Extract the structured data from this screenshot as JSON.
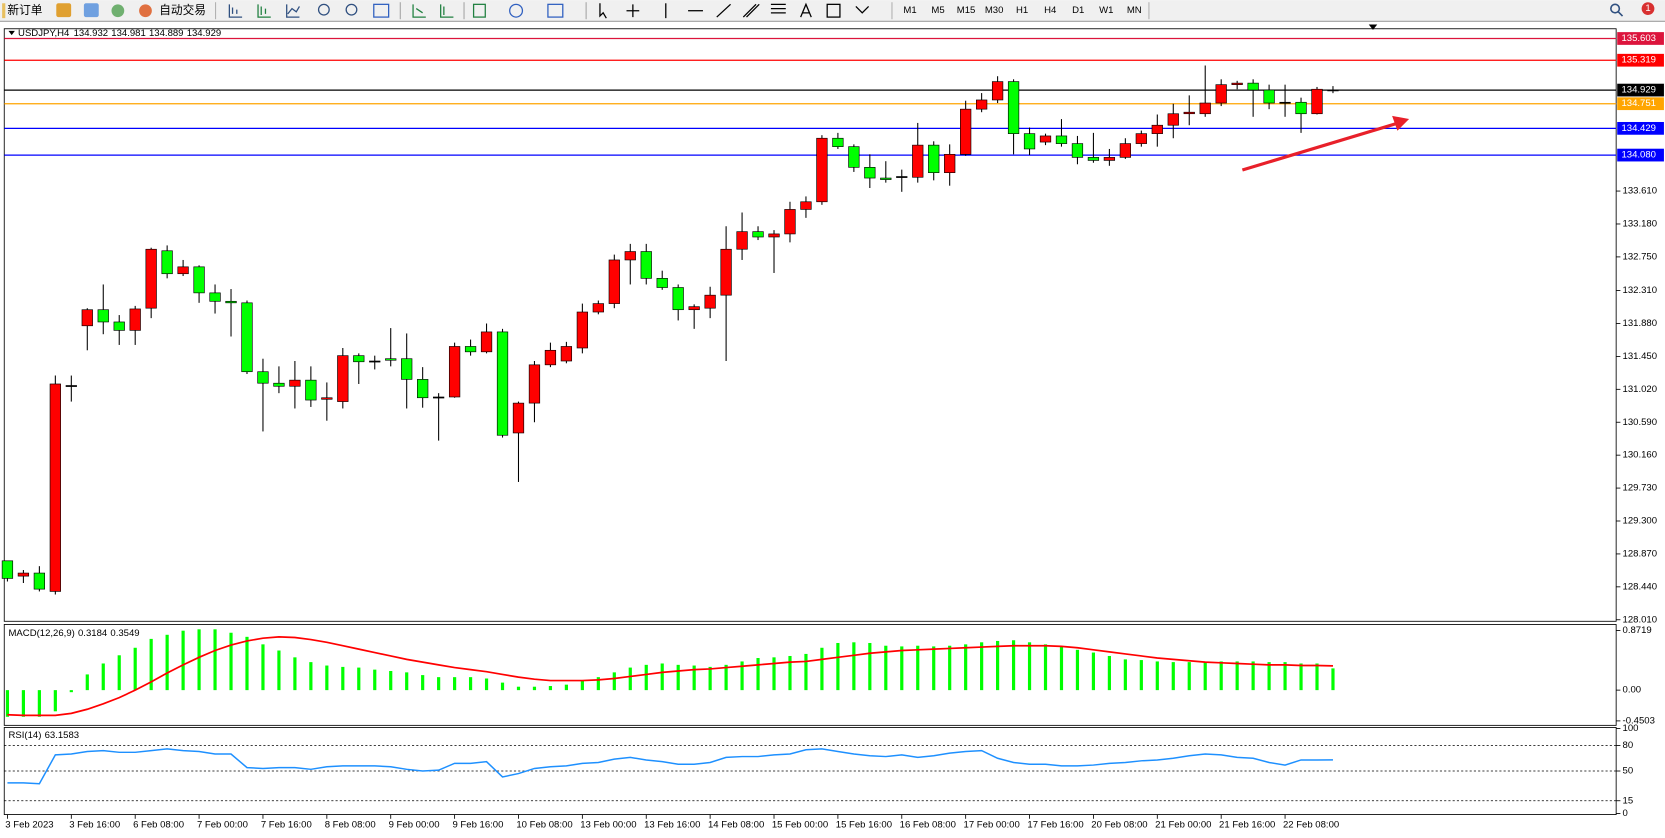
{
  "toolbar": {
    "new_order": "新订单",
    "auto_trading": "自动交易",
    "timeframes": [
      "M1",
      "M5",
      "M15",
      "M30",
      "H1",
      "H4",
      "D1",
      "W1",
      "MN"
    ],
    "alerts": 1
  },
  "chart_data": [
    {
      "type": "candlestick",
      "title": "USDJPY,H4",
      "categories": [
        "3 Feb 2023",
        null,
        null,
        null,
        "3 Feb 16:00",
        null,
        null,
        null,
        "6 Feb 08:00",
        null,
        null,
        null,
        "7 Feb 00:00",
        null,
        null,
        null,
        "7 Feb 16:00",
        null,
        null,
        null,
        "8 Feb 08:00",
        null,
        null,
        null,
        "9 Feb 00:00",
        null,
        null,
        null,
        "9 Feb 16:00",
        null,
        null,
        null,
        "10 Feb 08:00",
        null,
        null,
        null,
        "13 Feb 00:00",
        null,
        null,
        null,
        "13 Feb 16:00",
        null,
        null,
        null,
        "14 Feb 08:00",
        null,
        null,
        null,
        "15 Feb 00:00",
        null,
        null,
        null,
        "15 Feb 16:00",
        null,
        null,
        null,
        "16 Feb 08:00",
        null,
        null,
        null,
        "17 Feb 00:00",
        null,
        null,
        null,
        "17 Feb 16:00",
        null,
        null,
        null,
        "20 Feb 08:00",
        null,
        null,
        null,
        "21 Feb 00:00",
        null,
        null,
        null,
        "21 Feb 16:00",
        null,
        null,
        null,
        "22 Feb 08:00",
        null,
        null,
        null
      ],
      "open": [
        128.78,
        128.58,
        128.62,
        128.38,
        131.07,
        131.85,
        132.06,
        131.9,
        131.79,
        132.08,
        132.83,
        132.53,
        132.62,
        132.28,
        132.17,
        132.15,
        131.25,
        131.1,
        131.06,
        131.14,
        130.89,
        130.86,
        131.46,
        131.39,
        131.42,
        131.42,
        131.15,
        130.91,
        130.92,
        131.58,
        131.51,
        131.77,
        130.45,
        130.84,
        131.34,
        131.39,
        131.56,
        132.03,
        132.14,
        132.71,
        132.82,
        132.47,
        132.35,
        132.06,
        132.08,
        132.25,
        132.85,
        133.08,
        133.01,
        133.05,
        133.37,
        133.47,
        134.3,
        134.19,
        133.92,
        133.78,
        133.79,
        133.79,
        134.21,
        133.85,
        134.09,
        134.68,
        134.8,
        135.04,
        134.36,
        134.25,
        134.33,
        134.23,
        134.05,
        134.01,
        134.05,
        134.23,
        134.36,
        134.47,
        134.62,
        134.62,
        134.76,
        135.0,
        135.02,
        134.93,
        134.77,
        134.77,
        134.62,
        134.932
      ],
      "high": [
        128.78,
        128.66,
        128.71,
        131.2,
        131.2,
        132.08,
        132.39,
        131.99,
        132.11,
        132.87,
        132.9,
        132.71,
        132.64,
        132.39,
        132.33,
        132.18,
        131.42,
        131.32,
        131.39,
        131.32,
        131.11,
        131.56,
        131.49,
        131.46,
        131.82,
        131.75,
        131.31,
        130.97,
        131.63,
        131.67,
        131.88,
        131.81,
        130.86,
        131.39,
        131.63,
        131.64,
        132.14,
        132.18,
        132.78,
        132.92,
        132.92,
        132.57,
        132.39,
        132.13,
        132.36,
        133.15,
        133.33,
        133.15,
        133.1,
        133.47,
        133.54,
        134.34,
        134.37,
        134.22,
        134.09,
        134.0,
        133.89,
        134.5,
        134.26,
        134.22,
        134.79,
        134.89,
        135.11,
        135.07,
        134.44,
        134.36,
        134.55,
        134.33,
        134.37,
        134.16,
        134.3,
        134.4,
        134.61,
        134.75,
        134.86,
        135.25,
        135.07,
        135.05,
        135.07,
        135.0,
        135.0,
        134.83,
        134.97,
        134.981
      ],
      "low": [
        128.51,
        128.49,
        128.38,
        128.34,
        130.86,
        131.53,
        131.74,
        131.6,
        131.6,
        131.95,
        132.47,
        132.5,
        132.15,
        132.01,
        131.71,
        131.22,
        130.47,
        130.97,
        130.77,
        130.79,
        130.61,
        130.77,
        131.09,
        131.28,
        131.32,
        130.77,
        130.78,
        130.35,
        130.91,
        131.46,
        131.49,
        130.39,
        129.81,
        130.59,
        131.31,
        131.36,
        131.49,
        132.0,
        132.08,
        132.39,
        132.39,
        132.32,
        131.92,
        131.81,
        131.95,
        131.39,
        132.71,
        132.97,
        132.54,
        132.94,
        133.26,
        133.43,
        134.16,
        133.86,
        133.65,
        133.72,
        133.6,
        133.72,
        133.75,
        133.68,
        134.07,
        134.64,
        134.76,
        134.09,
        134.08,
        134.21,
        134.19,
        133.96,
        133.98,
        133.94,
        134.03,
        134.19,
        134.19,
        134.3,
        134.47,
        134.58,
        134.72,
        134.94,
        134.58,
        134.68,
        134.58,
        134.37,
        134.61,
        134.889
      ],
      "close": [
        128.55,
        128.62,
        128.41,
        131.09,
        131.06,
        132.06,
        131.9,
        131.79,
        132.07,
        132.85,
        132.53,
        132.62,
        132.28,
        132.17,
        132.15,
        131.25,
        131.1,
        131.06,
        131.14,
        130.88,
        130.91,
        131.46,
        131.38,
        131.38,
        131.4,
        131.15,
        130.91,
        130.92,
        131.58,
        131.51,
        131.77,
        130.42,
        130.84,
        131.34,
        131.53,
        131.58,
        132.03,
        132.14,
        132.71,
        132.82,
        132.47,
        132.35,
        132.06,
        132.1,
        132.25,
        132.85,
        133.08,
        133.01,
        133.05,
        133.37,
        133.47,
        134.3,
        134.19,
        133.92,
        133.78,
        133.76,
        133.8,
        134.21,
        133.85,
        134.09,
        134.68,
        134.8,
        135.04,
        134.36,
        134.16,
        134.33,
        134.23,
        134.05,
        134.01,
        134.05,
        134.23,
        134.36,
        134.47,
        134.62,
        134.64,
        134.76,
        135.0,
        135.02,
        134.93,
        134.76,
        134.76,
        134.62,
        134.94,
        134.929
      ],
      "up_color": "#ff0000",
      "down_color": "#00ff00",
      "ylim": [
        127.99,
        135.73
      ],
      "yticks": [
        {
          "value": 133.61,
          "label": "133.610"
        },
        {
          "value": 133.18,
          "label": "133.180"
        },
        {
          "value": 132.75,
          "label": "132.750"
        },
        {
          "value": 132.31,
          "label": "132.310"
        },
        {
          "value": 131.88,
          "label": "131.880"
        },
        {
          "value": 131.45,
          "label": "131.450"
        },
        {
          "value": 131.02,
          "label": "131.020"
        },
        {
          "value": 130.59,
          "label": "130.590"
        },
        {
          "value": 130.16,
          "label": "130.160"
        },
        {
          "value": 129.73,
          "label": "129.730"
        },
        {
          "value": 129.3,
          "label": "129.300"
        },
        {
          "value": 128.87,
          "label": "128.870"
        },
        {
          "value": 128.44,
          "label": "128.440"
        },
        {
          "value": 128.01,
          "label": "128.010"
        }
      ],
      "levels": [
        {
          "value": 135.603,
          "color": "#dc143c"
        },
        {
          "value": 135.319,
          "color": "#ff0000"
        },
        {
          "value": 134.929,
          "color": "#000000"
        },
        {
          "value": 134.751,
          "color": "#ffa500"
        },
        {
          "value": 134.429,
          "color": "#0000ff"
        },
        {
          "value": 134.08,
          "label": "134.080",
          "color": "#0000ff"
        }
      ]
    },
    {
      "type": "macd",
      "title": "MACD(12,26,9)",
      "histogram": {
        "color": "#00ff00",
        "values": [
          -0.39,
          -0.39,
          -0.39,
          -0.31,
          -0.03,
          0.23,
          0.39,
          0.51,
          0.62,
          0.75,
          0.81,
          0.87,
          0.89,
          0.89,
          0.84,
          0.78,
          0.67,
          0.58,
          0.48,
          0.41,
          0.36,
          0.34,
          0.33,
          0.3,
          0.28,
          0.26,
          0.22,
          0.19,
          0.19,
          0.19,
          0.17,
          0.11,
          0.05,
          0.05,
          0.06,
          0.08,
          0.14,
          0.19,
          0.26,
          0.33,
          0.37,
          0.39,
          0.37,
          0.36,
          0.34,
          0.37,
          0.42,
          0.47,
          0.48,
          0.5,
          0.53,
          0.62,
          0.69,
          0.7,
          0.69,
          0.65,
          0.64,
          0.65,
          0.64,
          0.65,
          0.67,
          0.7,
          0.72,
          0.73,
          0.7,
          0.67,
          0.64,
          0.59,
          0.55,
          0.5,
          0.45,
          0.44,
          0.42,
          0.41,
          0.41,
          0.41,
          0.42,
          0.42,
          0.42,
          0.41,
          0.41,
          0.39,
          0.39,
          0.3184
        ]
      },
      "signal": {
        "color": "#ff0000",
        "values": [
          -0.36,
          -0.37,
          -0.37,
          -0.37,
          -0.34,
          -0.28,
          -0.2,
          -0.11,
          0.0,
          0.12,
          0.25,
          0.37,
          0.48,
          0.58,
          0.66,
          0.72,
          0.76,
          0.78,
          0.77,
          0.74,
          0.7,
          0.65,
          0.6,
          0.55,
          0.5,
          0.45,
          0.41,
          0.37,
          0.33,
          0.3,
          0.27,
          0.23,
          0.19,
          0.16,
          0.14,
          0.14,
          0.14,
          0.15,
          0.17,
          0.2,
          0.23,
          0.26,
          0.28,
          0.3,
          0.31,
          0.33,
          0.35,
          0.37,
          0.39,
          0.41,
          0.42,
          0.45,
          0.48,
          0.51,
          0.54,
          0.56,
          0.58,
          0.59,
          0.6,
          0.61,
          0.62,
          0.63,
          0.64,
          0.65,
          0.65,
          0.65,
          0.64,
          0.62,
          0.59,
          0.56,
          0.53,
          0.5,
          0.47,
          0.45,
          0.43,
          0.41,
          0.4,
          0.39,
          0.38,
          0.37,
          0.37,
          0.36,
          0.36,
          0.3549
        ]
      },
      "ylim": [
        -0.5,
        0.93
      ],
      "yticks": [
        0.8719,
        {
          "value": 0,
          "label": "0.00"
        },
        -0.4503
      ]
    },
    {
      "type": "line",
      "title": "RSI(14)",
      "color": "#1e90ff",
      "values": [
        36,
        36,
        35,
        69,
        70,
        73,
        74,
        72,
        72,
        74,
        76,
        74,
        73,
        70,
        70,
        54,
        53,
        54,
        54,
        52,
        55,
        56,
        56,
        56,
        55,
        52,
        50,
        51,
        59,
        59,
        61,
        43,
        47,
        53,
        55,
        56,
        59,
        60,
        64,
        66,
        63,
        61,
        58,
        58,
        60,
        66,
        67,
        67,
        69,
        70,
        75,
        76,
        73,
        70,
        68,
        67,
        69,
        66,
        68,
        71,
        73,
        74,
        65,
        60,
        58,
        58,
        56,
        56,
        57,
        59,
        60,
        62,
        63,
        65,
        68,
        70,
        69,
        66,
        65,
        60,
        57,
        63,
        63,
        63.1583
      ],
      "ylim": [
        0,
        100
      ],
      "yticks": [
        100,
        80,
        50,
        15,
        0
      ],
      "levels": [
        80,
        50,
        15
      ]
    }
  ]
}
